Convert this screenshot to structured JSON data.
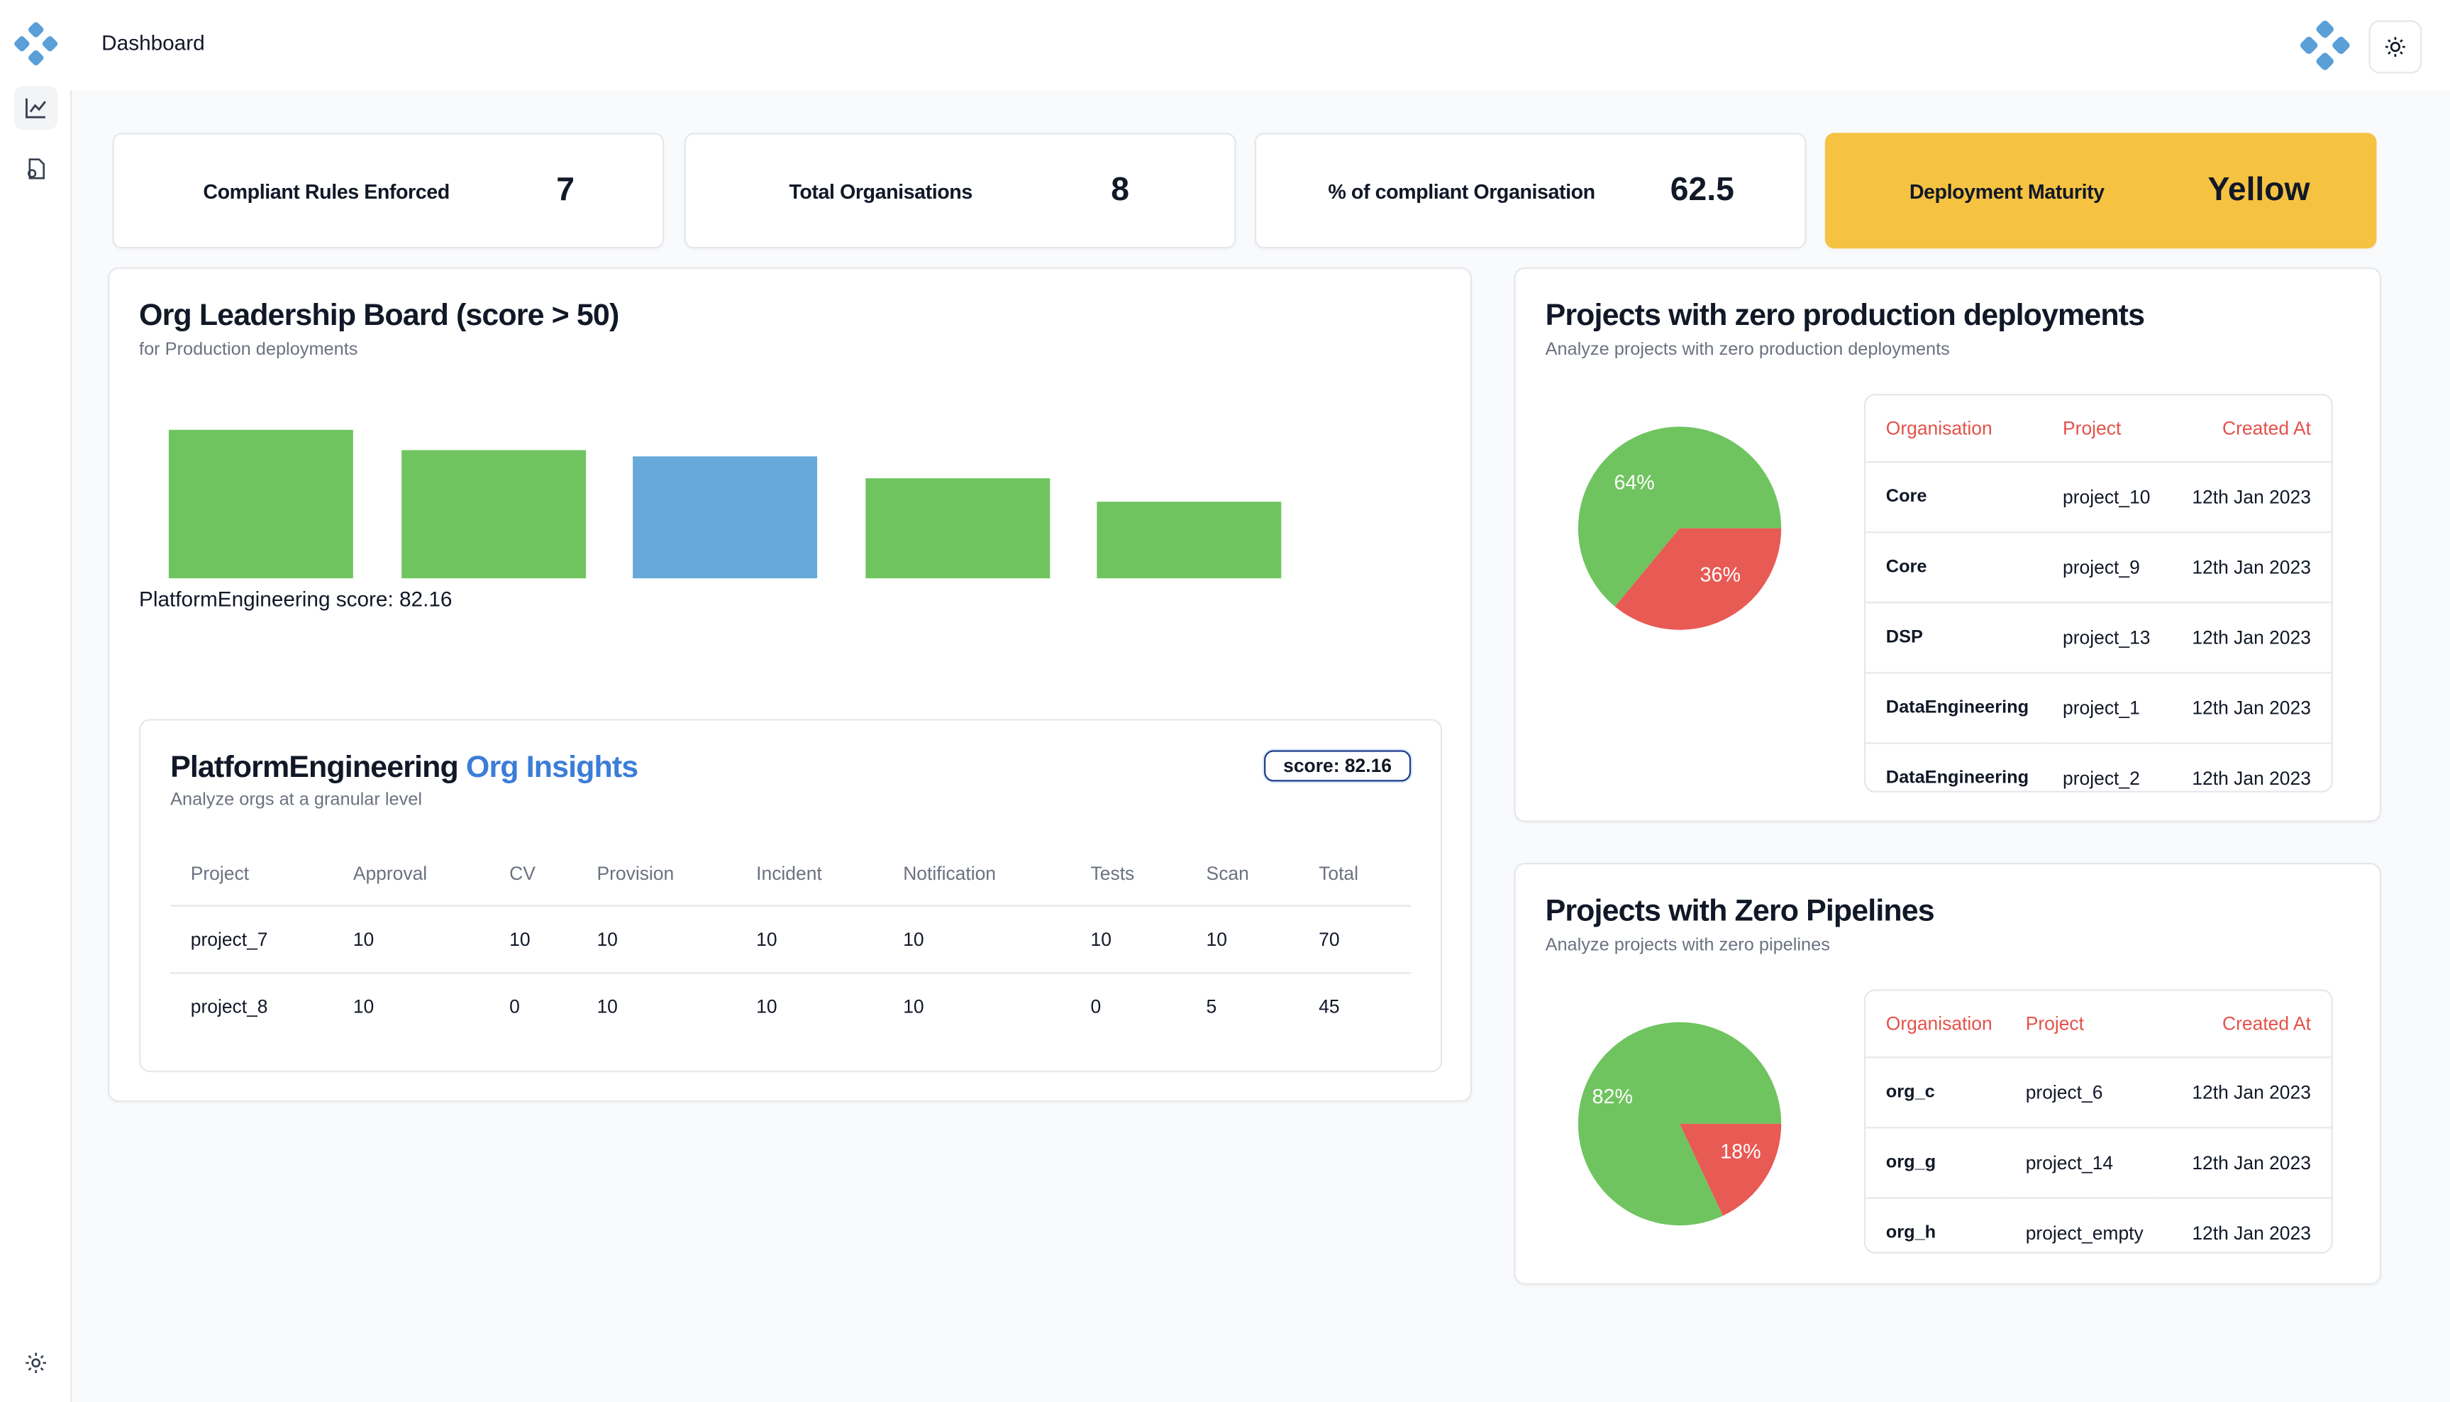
{
  "app": {
    "title": "Dashboard"
  },
  "sidebar": {
    "items": [
      {
        "name": "analytics",
        "icon": "line-chart-icon"
      },
      {
        "name": "reports",
        "icon": "file-settings-icon"
      }
    ],
    "settings_icon": "gear-icon"
  },
  "header": {
    "theme_icon": "sun-icon"
  },
  "stats": [
    {
      "label": "Compliant Rules Enforced",
      "value": "7"
    },
    {
      "label": "Total Organisations",
      "value": "8"
    },
    {
      "label": "% of compliant Organisation",
      "value": "62.5"
    },
    {
      "label": "Deployment Maturity",
      "value": "Yellow",
      "color": "#f5c242"
    }
  ],
  "leaderboard": {
    "title": "Org Leadership Board (score > 50)",
    "subtitle": "for Production deployments",
    "hover_label": "PlatformEngineering score: 82.16",
    "chart_data": {
      "type": "bar",
      "values": [
        100,
        86,
        82,
        67,
        52
      ],
      "colors": [
        "#6fc45f",
        "#6fc45f",
        "#67a9d9",
        "#6fc45f",
        "#6fc45f"
      ],
      "grid": false
    }
  },
  "insights": {
    "title_prefix": "PlatformEngineering",
    "title_suffix": "Org Insights",
    "subtitle": "Analyze orgs at a granular level",
    "score_label": "score: 82.16",
    "columns": [
      "Project",
      "Approval",
      "CV",
      "Provision",
      "Incident",
      "Notification",
      "Tests",
      "Scan",
      "Total"
    ],
    "rows": [
      [
        "project_7",
        "10",
        "10",
        "10",
        "10",
        "10",
        "10",
        "10",
        "70"
      ],
      [
        "project_8",
        "10",
        "0",
        "10",
        "10",
        "10",
        "0",
        "5",
        "45"
      ]
    ]
  },
  "zero_prod": {
    "title": "Projects with zero production deployments",
    "subtitle": "Analyze projects with zero production deployments",
    "columns": [
      "Organisation",
      "Project",
      "Created At"
    ],
    "rows": [
      [
        "Core",
        "project_10",
        "12th Jan 2023"
      ],
      [
        "Core",
        "project_9",
        "12th Jan 2023"
      ],
      [
        "DSP",
        "project_13",
        "12th Jan 2023"
      ],
      [
        "DataEngineering",
        "project_1",
        "12th Jan 2023"
      ],
      [
        "DataEngineering",
        "project_2",
        "12th Jan 2023"
      ]
    ],
    "chart_data": {
      "type": "pie",
      "slices": [
        {
          "label": "64%",
          "value": 64,
          "color": "#6fc45f"
        },
        {
          "label": "36%",
          "value": 36,
          "color": "#e85a54"
        }
      ]
    }
  },
  "zero_pipelines": {
    "title": "Projects with Zero Pipelines",
    "subtitle": "Analyze projects with zero pipelines",
    "columns": [
      "Organisation",
      "Project",
      "Created At"
    ],
    "rows": [
      [
        "org_c",
        "project_6",
        "12th Jan 2023"
      ],
      [
        "org_g",
        "project_14",
        "12th Jan 2023"
      ],
      [
        "org_h",
        "project_empty",
        "12th Jan 2023"
      ]
    ],
    "chart_data": {
      "type": "pie",
      "slices": [
        {
          "label": "82%",
          "value": 82,
          "color": "#6fc45f"
        },
        {
          "label": "18%",
          "value": 18,
          "color": "#e85a54"
        }
      ]
    }
  }
}
